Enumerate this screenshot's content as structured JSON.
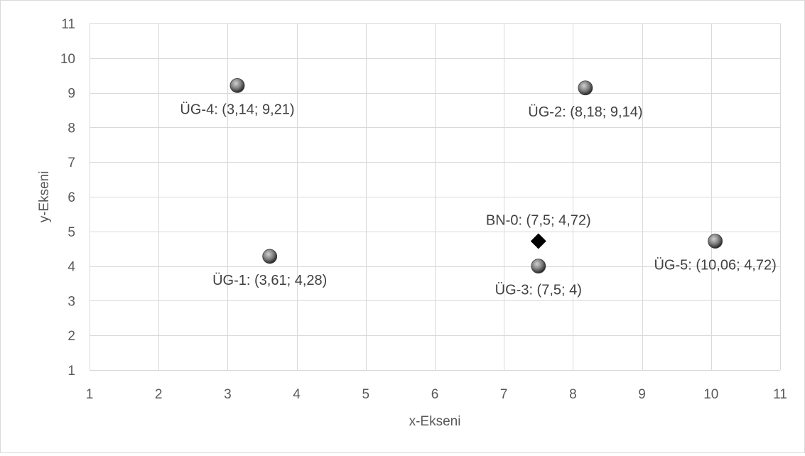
{
  "chart_data": {
    "type": "scatter",
    "title": "",
    "xlabel": "x-Ekseni",
    "ylabel": "y-Ekseni",
    "xlim": [
      1,
      11
    ],
    "ylim": [
      1,
      11
    ],
    "xticks": [
      1,
      2,
      3,
      4,
      5,
      6,
      7,
      8,
      9,
      10,
      11
    ],
    "yticks": [
      1,
      2,
      3,
      4,
      5,
      6,
      7,
      8,
      9,
      10,
      11
    ],
    "grid": true,
    "legend": "none",
    "points": [
      {
        "label": "ÜG-1: (3,61; 4,28)",
        "x": 3.61,
        "y": 4.28,
        "marker": "sphere",
        "label_position": "below"
      },
      {
        "label": "ÜG-2: (8,18; 9,14)",
        "x": 8.18,
        "y": 9.14,
        "marker": "sphere",
        "label_position": "below"
      },
      {
        "label": "ÜG-3: (7,5; 4)",
        "x": 7.5,
        "y": 4,
        "marker": "sphere",
        "label_position": "below"
      },
      {
        "label": "ÜG-4: (3,14; 9,21)",
        "x": 3.14,
        "y": 9.21,
        "marker": "sphere",
        "label_position": "below"
      },
      {
        "label": "ÜG-5: (10,06; 4,72)",
        "x": 10.06,
        "y": 4.72,
        "marker": "sphere",
        "label_position": "below"
      },
      {
        "label": "BN-0: (7,5; 4,72)",
        "x": 7.5,
        "y": 4.72,
        "marker": "diamond",
        "label_position": "above"
      }
    ],
    "colors": {
      "sphere": "#7f7f7f",
      "sphere_highlight": "#d0d0d0",
      "sphere_shadow": "#262626",
      "diamond": "#000000",
      "grid": "#d9d9d9",
      "text": "#595959"
    }
  }
}
